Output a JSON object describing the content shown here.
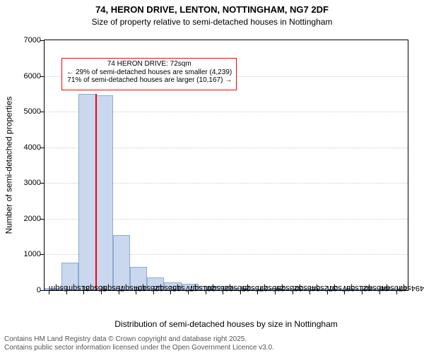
{
  "title": "74, HERON DRIVE, LENTON, NOTTINGHAM, NG7 2DF",
  "subtitle": "Size of property relative to semi-detached houses in Nottingham",
  "ylabel": "Number of semi-detached properties",
  "xlabel": "Distribution of semi-detached houses by size in Nottingham",
  "footer_line1": "Contains HM Land Registry data © Crown copyright and database right 2025.",
  "footer_line2": "Contains public sector information licensed under the Open Government Licence v3.0.",
  "title_fontsize": 13,
  "subtitle_fontsize": 12,
  "axis_label_fontsize": 12,
  "tick_fontsize": 11,
  "footer_fontsize": 10,
  "infobox_fontsize": 10,
  "plot_background": "#ffffff",
  "bar_fill": "#c9d8ef",
  "bar_stroke": "#8faad3",
  "grid_color": "#cccccc",
  "marker_color": "#ff0000",
  "infobox_border": "#ff0000",
  "footer_color": "#555555",
  "ylim": [
    0,
    7000
  ],
  "yticks": [
    0,
    1000,
    2000,
    3000,
    4000,
    5000,
    6000,
    7000
  ],
  "xlim_sqm": [
    0,
    510
  ],
  "xtick_positions": [
    6,
    31,
    55,
    79,
    104,
    128,
    153,
    177,
    201,
    226,
    250,
    275,
    299,
    323,
    348,
    372,
    397,
    421,
    446,
    470,
    494
  ],
  "xtick_labels": [
    "6sqm",
    "31sqm",
    "55sqm",
    "79sqm",
    "104sqm",
    "128sqm",
    "153sqm",
    "177sqm",
    "201sqm",
    "226sqm",
    "250sqm",
    "275sqm",
    "299sqm",
    "323sqm",
    "348sqm",
    "372sqm",
    "397sqm",
    "421sqm",
    "446sqm",
    "470sqm",
    "494sqm"
  ],
  "bars": [
    {
      "x_start": 0,
      "x_end": 24,
      "value": 50
    },
    {
      "x_start": 24,
      "x_end": 48,
      "value": 780
    },
    {
      "x_start": 48,
      "x_end": 72,
      "value": 5500
    },
    {
      "x_start": 72,
      "x_end": 96,
      "value": 5460
    },
    {
      "x_start": 96,
      "x_end": 120,
      "value": 1550
    },
    {
      "x_start": 120,
      "x_end": 144,
      "value": 650
    },
    {
      "x_start": 144,
      "x_end": 168,
      "value": 350
    },
    {
      "x_start": 168,
      "x_end": 192,
      "value": 220
    },
    {
      "x_start": 192,
      "x_end": 216,
      "value": 175
    },
    {
      "x_start": 216,
      "x_end": 240,
      "value": 110
    },
    {
      "x_start": 240,
      "x_end": 264,
      "value": 110
    },
    {
      "x_start": 264,
      "x_end": 288,
      "value": 60
    },
    {
      "x_start": 288,
      "x_end": 312,
      "value": 30
    },
    {
      "x_start": 312,
      "x_end": 336,
      "value": 18
    },
    {
      "x_start": 336,
      "x_end": 360,
      "value": 12
    },
    {
      "x_start": 360,
      "x_end": 384,
      "value": 8
    },
    {
      "x_start": 384,
      "x_end": 408,
      "value": 5
    },
    {
      "x_start": 408,
      "x_end": 432,
      "value": 3
    },
    {
      "x_start": 432,
      "x_end": 456,
      "value": 2
    },
    {
      "x_start": 456,
      "x_end": 480,
      "value": 2
    },
    {
      "x_start": 480,
      "x_end": 504,
      "value": 1
    }
  ],
  "marker": {
    "x_sqm": 72,
    "value": 5500
  },
  "infobox": {
    "line1": "74 HERON DRIVE: 72sqm",
    "line2": "← 29% of semi-detached houses are smaller (4,239)",
    "line3": "71% of semi-detached houses are larger (10,167) →",
    "left_sqm": 24,
    "top_value": 6500,
    "bottom_value": 5600
  }
}
